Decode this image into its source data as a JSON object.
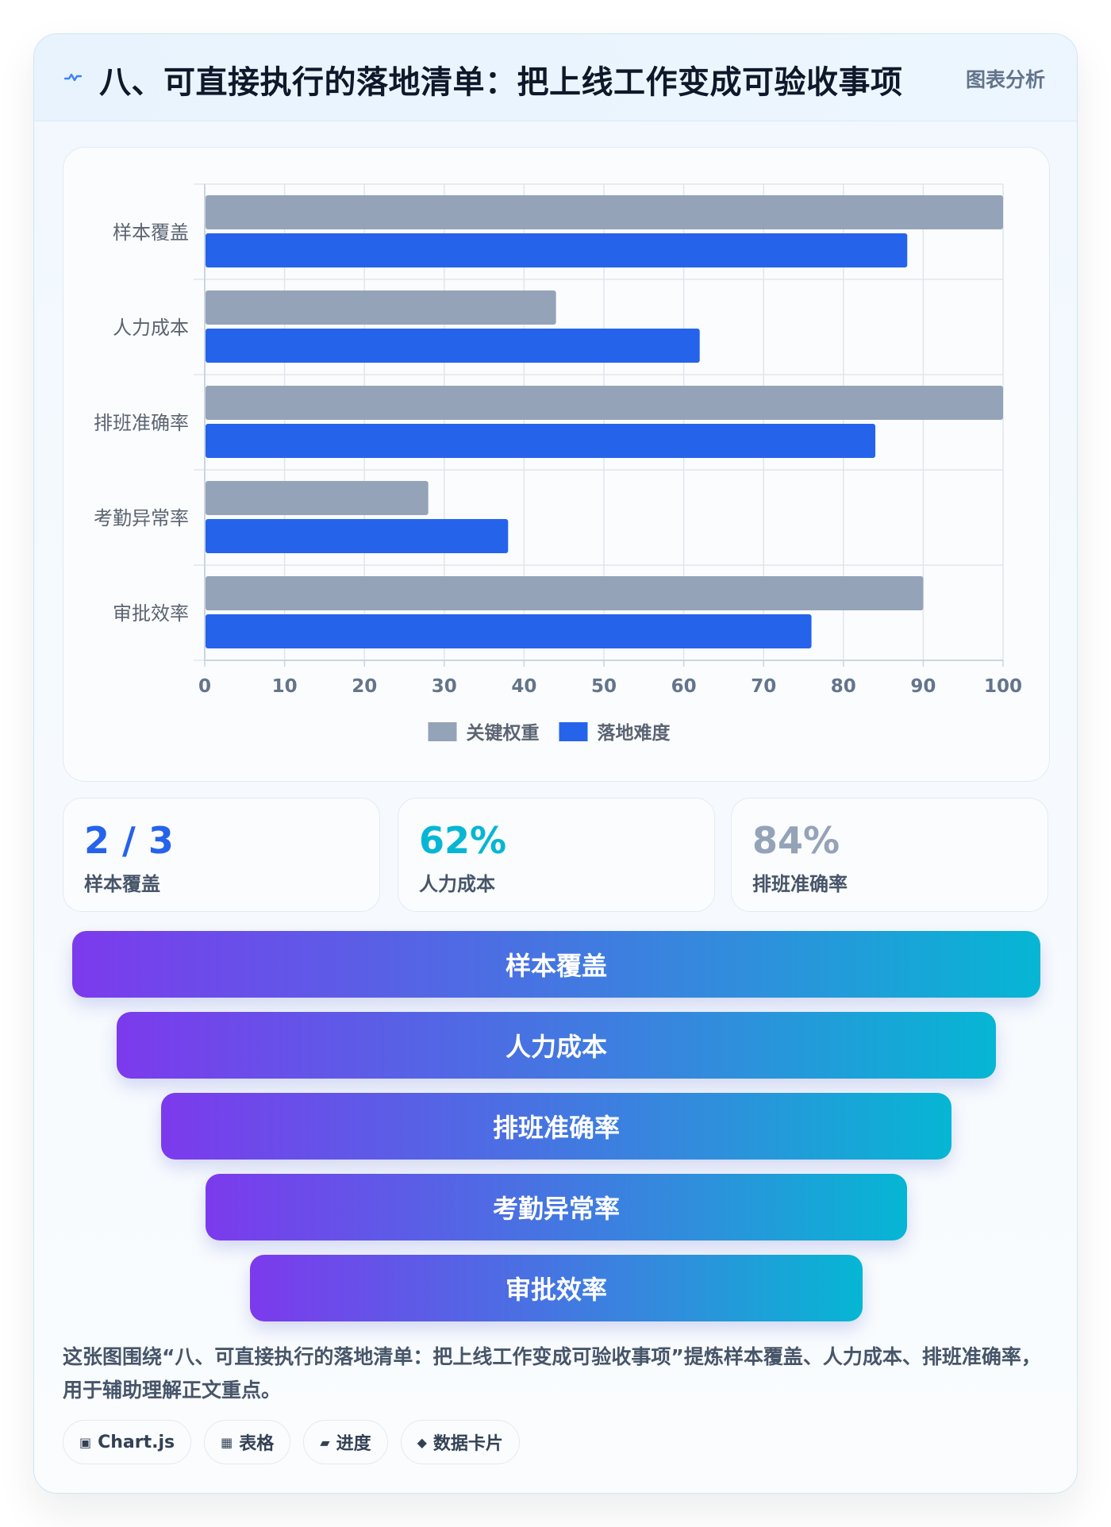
{
  "header": {
    "title": "八、可直接执行的落地清单：把上线工作变成可验收事项",
    "badge": "图表分析",
    "icon": "activity-icon"
  },
  "chart_data": {
    "type": "bar",
    "orientation": "horizontal",
    "categories": [
      "样本覆盖",
      "人力成本",
      "排班准确率",
      "考勤异常率",
      "审批效率"
    ],
    "series": [
      {
        "name": "关键权重",
        "color": "#94a3b8",
        "values": [
          100,
          44,
          100,
          28,
          90
        ]
      },
      {
        "name": "落地难度",
        "color": "#2563eb",
        "values": [
          88,
          62,
          84,
          38,
          76
        ]
      }
    ],
    "xlim": [
      0,
      100
    ],
    "xticks": [
      0,
      10,
      20,
      30,
      40,
      50,
      60,
      70,
      80,
      90,
      100
    ],
    "grid": true,
    "legend_position": "bottom"
  },
  "stats": [
    {
      "value": "2 / 3",
      "label": "样本覆盖",
      "color": "#2563eb"
    },
    {
      "value": "62%",
      "label": "人力成本",
      "color": "#06b6d4"
    },
    {
      "value": "84%",
      "label": "排班准确率",
      "color": "#94a3b8"
    }
  ],
  "funnel": [
    "样本覆盖",
    "人力成本",
    "排班准确率",
    "考勤异常率",
    "审批效率"
  ],
  "description": "这张图围绕“八、可直接执行的落地清单：把上线工作变成可验收事项”提炼样本覆盖、人力成本、排班准确率，用于辅助理解正文重点。",
  "tags": [
    {
      "icon": "▣",
      "label": "Chart.js"
    },
    {
      "icon": "▦",
      "label": "表格"
    },
    {
      "icon": "▰",
      "label": "进度"
    },
    {
      "icon": "◆",
      "label": "数据卡片"
    }
  ]
}
